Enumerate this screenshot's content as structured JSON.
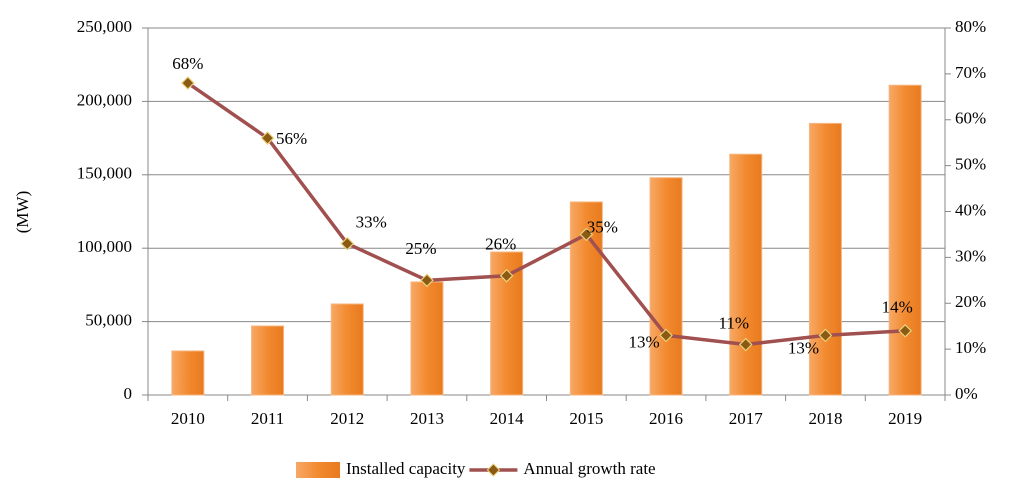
{
  "chart_data": {
    "type": "bar_line",
    "y_label": "(MW)",
    "categories": [
      "2010",
      "2011",
      "2012",
      "2013",
      "2014",
      "2015",
      "2016",
      "2017",
      "2018",
      "2019"
    ],
    "series": [
      {
        "name": "Installed capacity",
        "type": "bar",
        "color": "#f28a30",
        "values": [
          30000,
          47000,
          62000,
          77000,
          97400,
          131500,
          148000,
          164000,
          185000,
          211000
        ]
      },
      {
        "name": "Annual growth rate",
        "type": "line",
        "axis": "y2",
        "color": "#a0504e",
        "marker_color": "#8b5a14",
        "values": [
          68,
          56,
          33,
          25,
          26,
          35,
          13,
          11,
          13,
          14
        ],
        "value_labels": [
          "68%",
          "56%",
          "33%",
          "25%",
          "26%",
          "35%",
          "13%",
          "11%",
          "13%",
          "14%"
        ]
      }
    ],
    "ylim": [
      0,
      250000
    ],
    "yticks": [
      0,
      {
        "value": 50000,
        "label": "50,000"
      },
      {
        "value": 100000,
        "label": "100,000"
      },
      {
        "value": 150000,
        "label": "150,000"
      },
      {
        "value": 200000,
        "label": "200,000"
      },
      {
        "value": 250000,
        "label": "250,000"
      }
    ],
    "y2lim": [
      0,
      80
    ],
    "y2ticks": [
      {
        "value": 0,
        "label": "0%"
      },
      {
        "value": 10,
        "label": "10%"
      },
      {
        "value": 20,
        "label": "20%"
      },
      {
        "value": 30,
        "label": "30%"
      },
      {
        "value": 40,
        "label": "40%"
      },
      {
        "value": 50,
        "label": "50%"
      },
      {
        "value": 60,
        "label": "60%"
      },
      {
        "value": 70,
        "label": "70%"
      },
      {
        "value": 80,
        "label": "80%"
      }
    ],
    "grid": true,
    "legend": "bottom"
  }
}
